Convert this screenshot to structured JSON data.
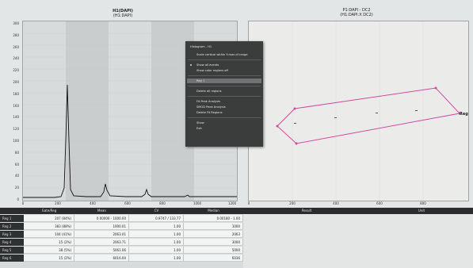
{
  "histogram": {
    "title": "H1(DAPI)",
    "subtitle": "(H1:DAPI)",
    "y_ticks": [
      "300",
      "280",
      "260",
      "240",
      "220",
      "200",
      "180",
      "160",
      "140",
      "120",
      "100",
      "80",
      "60",
      "40",
      "20",
      "0"
    ],
    "x_ticks": [
      "0",
      "200",
      "400",
      "600",
      "800",
      "1000",
      "1200"
    ],
    "band_colors": [
      "#d8dbdb",
      "#c9cdcd"
    ]
  },
  "scatter": {
    "title": "P1:DAPI - DC2",
    "subtitle": "(H1:DAPI:X DC2)",
    "region_label": "Reg",
    "x_ticks": [
      "0",
      "200",
      "400",
      "600",
      "800"
    ],
    "region_color": "#d04aa2"
  },
  "context_menu": {
    "header": "Histogram - H1",
    "items": [
      {
        "label": "Scale vertical within Y-max of range",
        "sep_before": false,
        "highlight": false,
        "bullet": false
      },
      {
        "label": "Show all events",
        "sep_before": true,
        "highlight": false,
        "bullet": true
      },
      {
        "label": "Show color regions off",
        "sep_before": false,
        "highlight": false,
        "bullet": false
      },
      {
        "label": "Reg 1",
        "sep_before": true,
        "highlight": true,
        "bullet": false
      },
      {
        "label": "Delete all regions",
        "sep_before": true,
        "highlight": false,
        "bullet": false
      },
      {
        "label": "Fit Peak Analysis",
        "sep_before": true,
        "highlight": false,
        "bullet": false
      },
      {
        "label": "SMOD Peak Analysis",
        "sep_before": false,
        "highlight": false,
        "bullet": false
      },
      {
        "label": "Delete Fit Regions",
        "sep_before": false,
        "highlight": false,
        "bullet": false
      },
      {
        "label": "Show",
        "sep_before": true,
        "highlight": false,
        "bullet": false
      },
      {
        "label": "Exit",
        "sep_before": false,
        "highlight": false,
        "bullet": false
      }
    ]
  },
  "stats_table": {
    "columns": [
      "Gate/Reg",
      "Mean",
      "CV",
      "Median"
    ],
    "rows": [
      {
        "name": "Reg 1",
        "cells": [
          "207 (84%)",
          "0.00000 - 1000.00",
          "0.9747 / 133.77",
          "0.00180 - 1.00"
        ]
      },
      {
        "name": "Reg 2",
        "cells": [
          "383 (88%)",
          "1000.01",
          "1.00",
          "1000"
        ]
      },
      {
        "name": "Reg 3",
        "cells": [
          "104 (41%)",
          "2063.01",
          "1.00",
          "2063"
        ]
      },
      {
        "name": "Reg 4",
        "cells": [
          "15 (2%)",
          "2063.71",
          "1.00",
          "3000"
        ]
      },
      {
        "name": "Reg 5",
        "cells": [
          "38 (5%)",
          "5061.06",
          "1.00",
          "5000"
        ]
      },
      {
        "name": "Reg 6",
        "cells": [
          "15 (2%)",
          "6016.00",
          "1.00",
          "6036"
        ]
      }
    ]
  },
  "result_table": {
    "columns": [
      "Result",
      "Unit"
    ]
  }
}
